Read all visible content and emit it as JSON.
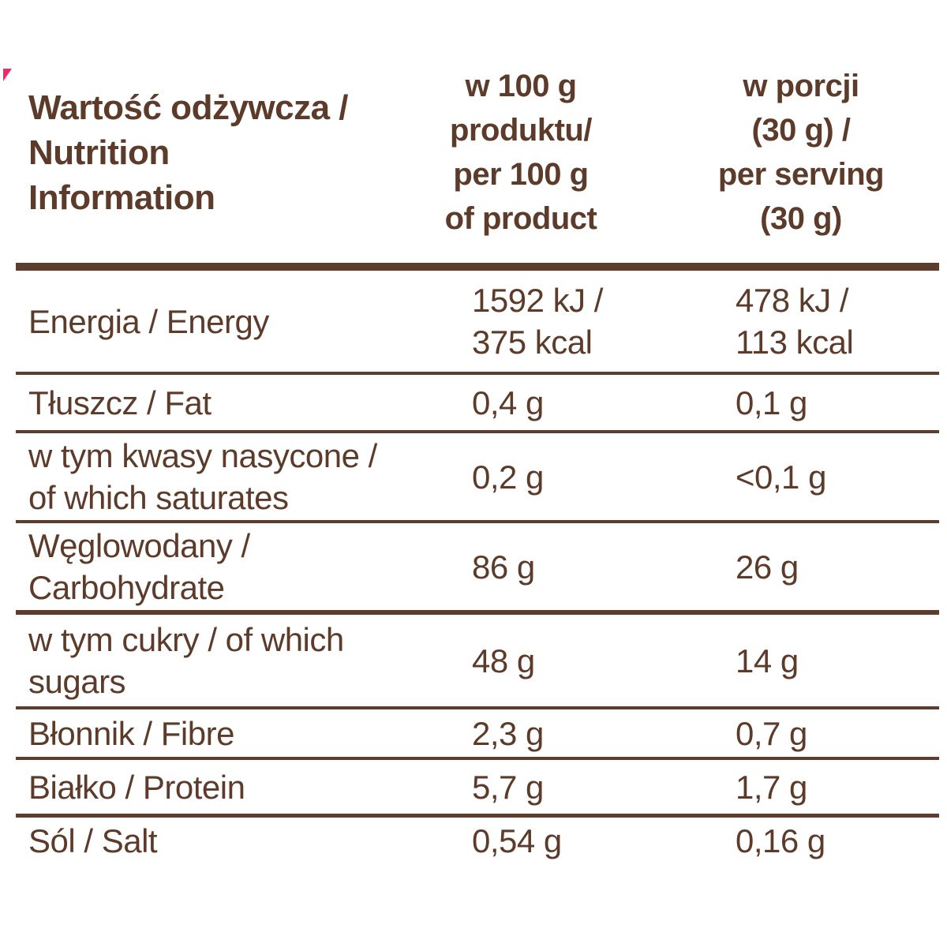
{
  "colors": {
    "text": "#5d3b2b",
    "rule_lines": "#5f3d2c",
    "corner_mark": "#ec2a6e"
  },
  "header": {
    "title": "Wartość odżywcza /\nNutrition Information",
    "per_100g": "w 100 g\nproduktu/\nper 100 g\nof product",
    "per_serving": "w porcji\n(30 g) /\nper serving\n(30 g)"
  },
  "rows": [
    {
      "label": "Energia / Energy",
      "per_100g": "1592 kJ /\n375 kcal",
      "per_serving": "478 kJ /\n113 kcal"
    },
    {
      "label": "Tłuszcz / Fat",
      "per_100g": "0,4 g",
      "per_serving": "0,1 g"
    },
    {
      "label": "w tym kwasy nasycone /\nof which saturates",
      "per_100g": "0,2 g",
      "per_serving": "<0,1 g"
    },
    {
      "label": "Węglowodany /\nCarbohydrate",
      "per_100g": "86 g",
      "per_serving": "26 g"
    },
    {
      "label": "w tym cukry / of which\nsugars",
      "per_100g": "48 g",
      "per_serving": "14 g"
    },
    {
      "label": "Błonnik / Fibre",
      "per_100g": "2,3 g",
      "per_serving": "0,7 g"
    },
    {
      "label": "Białko / Protein",
      "per_100g": "5,7 g",
      "per_serving": "1,7 g"
    },
    {
      "label": "Sól / Salt",
      "per_100g": "0,54 g",
      "per_serving": "0,16 g"
    }
  ]
}
